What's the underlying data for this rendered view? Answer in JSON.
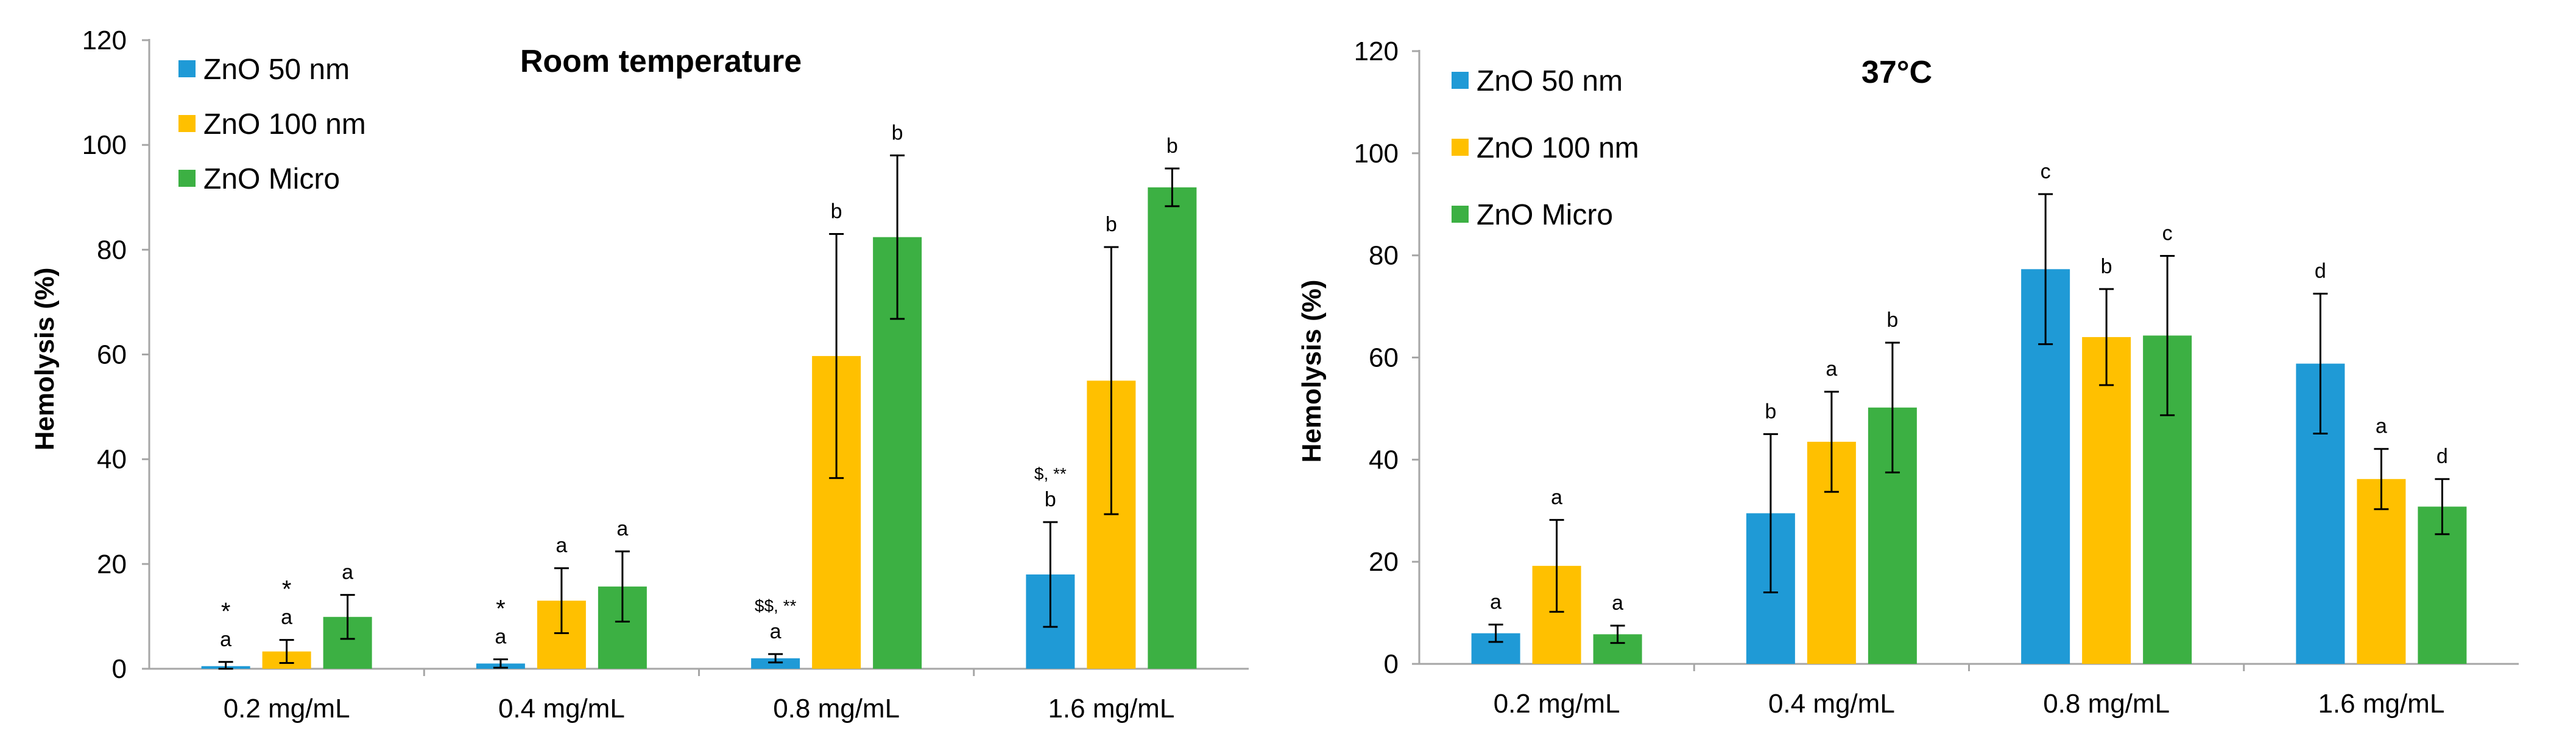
{
  "colors": {
    "zno_50nm": "#1f9ad6",
    "zno_100nm": "#ffc000",
    "zno_micro": "#3cb043"
  },
  "chart_data": [
    {
      "type": "bar",
      "title": "Room temperature",
      "xlabel": "",
      "ylabel": "Hemolysis (%)",
      "ylim": [
        0,
        120
      ],
      "yticks": [
        "0",
        "20",
        "40",
        "60",
        "80",
        "100",
        "120"
      ],
      "categories": [
        "0.2 mg/mL",
        "0.4 mg/mL",
        "0.8 mg/mL",
        "1.6 mg/mL"
      ],
      "legend_position": "top-left",
      "series": [
        {
          "name": "ZnO 50 nm",
          "color_key": "zno_50nm",
          "values": [
            0.5,
            1.0,
            2.0,
            18.0
          ],
          "errors": [
            0.8,
            0.8,
            0.8,
            10.0
          ],
          "annotations": [
            [
              "a",
              "*"
            ],
            [
              "a",
              "*"
            ],
            [
              "a",
              "$$, **"
            ],
            [
              "b",
              "$, **"
            ]
          ]
        },
        {
          "name": "ZnO 100 nm",
          "color_key": "zno_100nm",
          "values": [
            3.3,
            13.0,
            59.7,
            55.0
          ],
          "errors": [
            2.2,
            6.2,
            23.3,
            25.5
          ],
          "annotations": [
            [
              "a",
              "*"
            ],
            [
              "a"
            ],
            [
              "b"
            ],
            [
              "b"
            ]
          ]
        },
        {
          "name": "ZnO Micro",
          "color_key": "zno_micro",
          "values": [
            9.9,
            15.7,
            82.4,
            91.9
          ],
          "errors": [
            4.2,
            6.7,
            15.6,
            3.6
          ],
          "annotations": [
            [
              "a"
            ],
            [
              "a"
            ],
            [
              "b"
            ],
            [
              "b"
            ]
          ]
        }
      ]
    },
    {
      "type": "bar",
      "title": "37°C",
      "xlabel": "",
      "ylabel": "Hemolysis (%)",
      "ylim": [
        0,
        120
      ],
      "yticks": [
        "0",
        "20",
        "40",
        "60",
        "80",
        "100",
        "120"
      ],
      "categories": [
        "0.2 mg/mL",
        "0.4 mg/mL",
        "0.8 mg/mL",
        "1.6 mg/mL"
      ],
      "legend_position": "top-left",
      "series": [
        {
          "name": "ZnO 50 nm",
          "color_key": "zno_50nm",
          "values": [
            6.0,
            29.5,
            77.3,
            58.8
          ],
          "errors": [
            1.7,
            15.5,
            14.7,
            13.7
          ],
          "annotations": [
            [
              "a"
            ],
            [
              "b"
            ],
            [
              "c"
            ],
            [
              "d"
            ]
          ]
        },
        {
          "name": "ZnO 100 nm",
          "color_key": "zno_100nm",
          "values": [
            19.2,
            43.5,
            64.0,
            36.2
          ],
          "errors": [
            9.0,
            9.8,
            9.4,
            5.9
          ],
          "annotations": [
            [
              "a"
            ],
            [
              "a"
            ],
            [
              "b"
            ],
            [
              "a"
            ]
          ]
        },
        {
          "name": "ZnO Micro",
          "color_key": "zno_micro",
          "values": [
            5.8,
            50.2,
            64.3,
            30.8
          ],
          "errors": [
            1.7,
            12.7,
            15.6,
            5.4
          ],
          "annotations": [
            [
              "a"
            ],
            [
              "b"
            ],
            [
              "c"
            ],
            [
              "d"
            ]
          ]
        }
      ]
    }
  ]
}
